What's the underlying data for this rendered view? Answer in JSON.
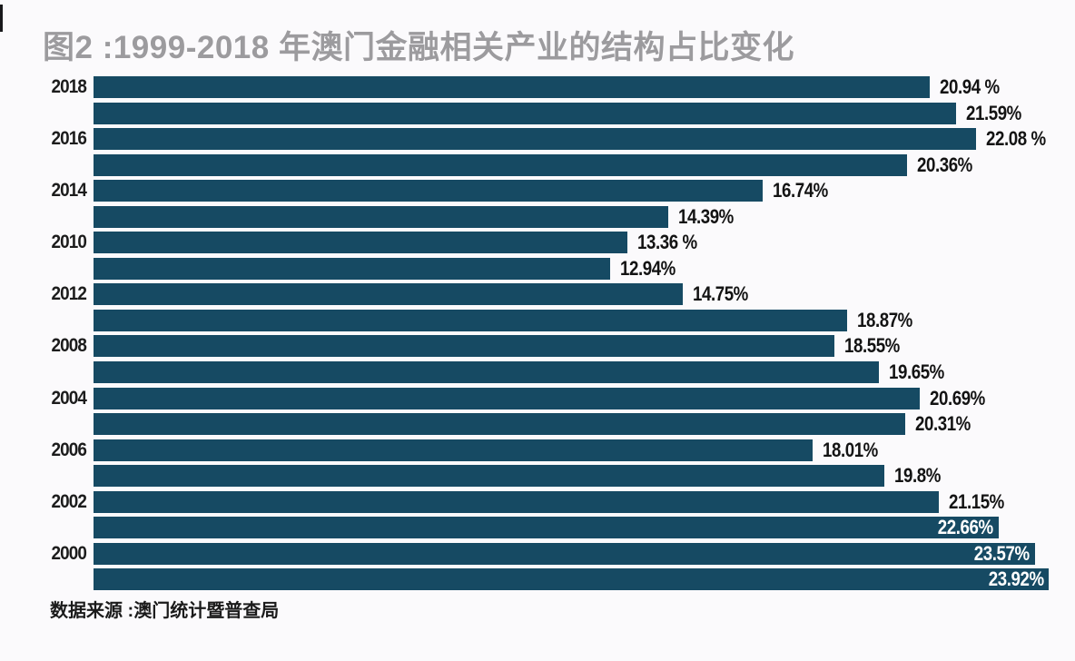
{
  "title": "图2 :1999-2018 年澳门金融相关产业的结构占比变化",
  "source": "数据来源 :澳门统计暨普查局",
  "colors": {
    "bar": "#164a63",
    "title_text": "#9c9b9e",
    "value_text_outside": "#131313",
    "value_text_inside": "#ffffff",
    "background": "#fbfafc"
  },
  "chart_data": {
    "type": "bar",
    "orientation": "horizontal",
    "title": "图2 :1999-2018 年澳门金融相关产业的结构占比变化",
    "xlabel": "",
    "ylabel": "",
    "xlim": [
      0,
      24
    ],
    "grid": false,
    "legend": false,
    "value_unit": "%",
    "visible_year_ticks": [
      "2018",
      "2016",
      "2014",
      "2010",
      "2012",
      "2008",
      "2004",
      "2006",
      "2002",
      "2000"
    ],
    "rows": [
      {
        "year_label": "2018",
        "value": 20.94,
        "display": "20.94 %",
        "label_position": "outside"
      },
      {
        "year_label": "",
        "value": 21.59,
        "display": "21.59%",
        "label_position": "outside"
      },
      {
        "year_label": "2016",
        "value": 22.08,
        "display": "22.08 %",
        "label_position": "outside"
      },
      {
        "year_label": "",
        "value": 20.36,
        "display": "20.36%",
        "label_position": "outside"
      },
      {
        "year_label": "2014",
        "value": 16.74,
        "display": "16.74%",
        "label_position": "outside"
      },
      {
        "year_label": "",
        "value": 14.39,
        "display": "14.39%",
        "label_position": "outside"
      },
      {
        "year_label": "2010",
        "value": 13.36,
        "display": "13.36 %",
        "label_position": "outside"
      },
      {
        "year_label": "",
        "value": 12.94,
        "display": "12.94%",
        "label_position": "outside"
      },
      {
        "year_label": "2012",
        "value": 14.75,
        "display": "14.75%",
        "label_position": "outside"
      },
      {
        "year_label": "",
        "value": 18.87,
        "display": "18.87%",
        "label_position": "outside"
      },
      {
        "year_label": "2008",
        "value": 18.55,
        "display": "18.55%",
        "label_position": "outside"
      },
      {
        "year_label": "",
        "value": 19.65,
        "display": "19.65%",
        "label_position": "outside"
      },
      {
        "year_label": "2004",
        "value": 20.69,
        "display": "20.69%",
        "label_position": "outside"
      },
      {
        "year_label": "",
        "value": 20.31,
        "display": "20.31%",
        "label_position": "outside"
      },
      {
        "year_label": "2006",
        "value": 18.01,
        "display": "18.01%",
        "label_position": "outside"
      },
      {
        "year_label": "",
        "value": 19.8,
        "display": "19.8%",
        "label_position": "outside"
      },
      {
        "year_label": "2002",
        "value": 21.15,
        "display": "21.15%",
        "label_position": "outside"
      },
      {
        "year_label": "",
        "value": 22.66,
        "display": "22.66%",
        "label_position": "inside"
      },
      {
        "year_label": "2000",
        "value": 23.57,
        "display": "23.57%",
        "label_position": "inside"
      },
      {
        "year_label": "",
        "value": 23.92,
        "display": "23.92%",
        "label_position": "inside"
      }
    ]
  }
}
